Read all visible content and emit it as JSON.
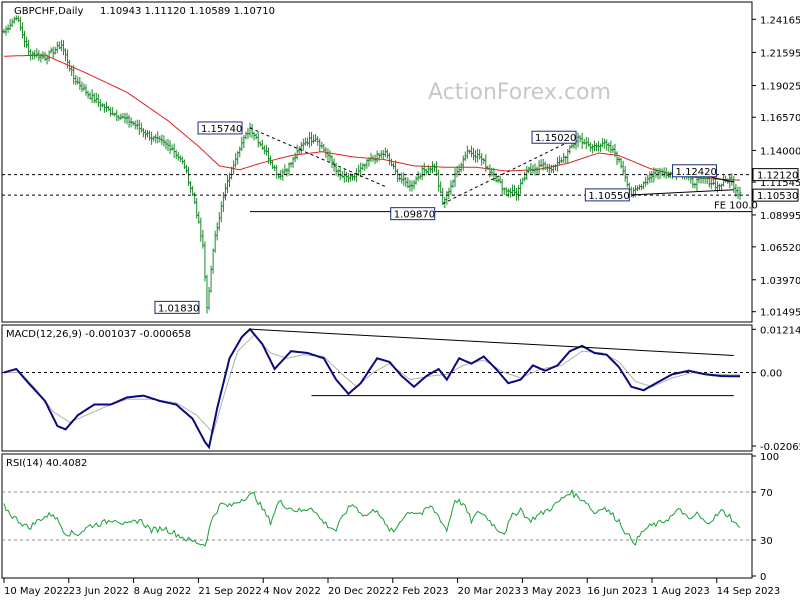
{
  "chart_data": [
    {
      "type": "candlestick",
      "symbol": "GBPCHF,Daily",
      "ohlc_text": "1.10943 1.11120 1.10589 1.10710",
      "watermark": "ActionForex.com",
      "ylim": [
        1.0085,
        1.2535
      ],
      "y_ticks": [
        "1.24165",
        "1.21595",
        "1.19025",
        "1.16570",
        "1.14000",
        "1.11545",
        "1.08995",
        "1.06520",
        "1.03970",
        "1.01495"
      ],
      "y_tick_values": [
        1.24165,
        1.21595,
        1.19025,
        1.1657,
        1.14,
        1.11545,
        1.08995,
        1.0652,
        1.0397,
        1.01495
      ],
      "current_price_labels": [
        {
          "text": "1.12120",
          "value": 1.1212
        },
        {
          "text": "1.10530",
          "value": 1.1053
        }
      ],
      "x_labels": [
        "10 May 2022",
        "23 Jun 2022",
        "8 Aug 2022",
        "21 Sep 2022",
        "4 Nov 2022",
        "20 Dec 2022",
        "2 Feb 2023",
        "20 Mar 2023",
        "3 May 2023",
        "16 Jun 2023",
        "1 Aug 2023",
        "14 Sep 2023"
      ],
      "price_keypoints": [
        [
          0,
          1.232
        ],
        [
          6,
          1.244
        ],
        [
          12,
          1.216
        ],
        [
          20,
          1.212
        ],
        [
          28,
          1.222
        ],
        [
          34,
          1.196
        ],
        [
          42,
          1.182
        ],
        [
          52,
          1.17
        ],
        [
          62,
          1.162
        ],
        [
          72,
          1.15
        ],
        [
          82,
          1.142
        ],
        [
          88,
          1.128
        ],
        [
          93,
          1.1
        ],
        [
          97,
          1.065
        ],
        [
          99,
          1.0183
        ],
        [
          103,
          1.075
        ],
        [
          108,
          1.11
        ],
        [
          114,
          1.14
        ],
        [
          120,
          1.1574
        ],
        [
          128,
          1.138
        ],
        [
          134,
          1.12
        ],
        [
          140,
          1.13
        ],
        [
          146,
          1.146
        ],
        [
          152,
          1.15
        ],
        [
          158,
          1.136
        ],
        [
          164,
          1.12
        ],
        [
          170,
          1.118
        ],
        [
          178,
          1.132
        ],
        [
          186,
          1.138
        ],
        [
          192,
          1.12
        ],
        [
          198,
          1.112
        ],
        [
          204,
          1.124
        ],
        [
          210,
          1.128
        ],
        [
          214,
          1.0987
        ],
        [
          220,
          1.12
        ],
        [
          226,
          1.14
        ],
        [
          232,
          1.135
        ],
        [
          238,
          1.122
        ],
        [
          244,
          1.11
        ],
        [
          250,
          1.107
        ],
        [
          256,
          1.125
        ],
        [
          262,
          1.128
        ],
        [
          268,
          1.126
        ],
        [
          274,
          1.136
        ],
        [
          280,
          1.1502
        ],
        [
          286,
          1.142
        ],
        [
          292,
          1.146
        ],
        [
          298,
          1.138
        ],
        [
          302,
          1.125
        ],
        [
          306,
          1.1055
        ],
        [
          312,
          1.115
        ],
        [
          318,
          1.124
        ],
        [
          324,
          1.122
        ],
        [
          330,
          1.1242
        ],
        [
          336,
          1.115
        ],
        [
          342,
          1.118
        ],
        [
          348,
          1.112
        ],
        [
          354,
          1.118
        ],
        [
          358,
          1.1071
        ]
      ],
      "moving_average_keypoints": [
        [
          0,
          1.213
        ],
        [
          20,
          1.214
        ],
        [
          40,
          1.2
        ],
        [
          60,
          1.185
        ],
        [
          80,
          1.163
        ],
        [
          95,
          1.143
        ],
        [
          105,
          1.128
        ],
        [
          115,
          1.125
        ],
        [
          125,
          1.13
        ],
        [
          140,
          1.136
        ],
        [
          155,
          1.139
        ],
        [
          170,
          1.135
        ],
        [
          185,
          1.133
        ],
        [
          200,
          1.128
        ],
        [
          215,
          1.127
        ],
        [
          230,
          1.127
        ],
        [
          245,
          1.124
        ],
        [
          260,
          1.125
        ],
        [
          275,
          1.13
        ],
        [
          290,
          1.138
        ],
        [
          300,
          1.136
        ],
        [
          315,
          1.126
        ],
        [
          330,
          1.12
        ],
        [
          345,
          1.118
        ],
        [
          358,
          1.117
        ]
      ],
      "annotations": [
        {
          "text": "1.15740",
          "value": 1.1574
        },
        {
          "text": "1.01830",
          "value": 1.0183
        },
        {
          "text": "1.09870",
          "value": 1.0987
        },
        {
          "text": "1.15020",
          "value": 1.1502
        },
        {
          "text": "1.10550",
          "value": 1.1055
        },
        {
          "text": "1.12420",
          "value": 1.1242
        }
      ],
      "horizontal_levels": [
        {
          "value": 1.1212,
          "style": "dashed"
        },
        {
          "value": 1.1053,
          "style": "dashed"
        },
        {
          "value": 1.0925,
          "style": "solid",
          "label": "FE 100.0"
        }
      ]
    },
    {
      "type": "line",
      "title": "MACD(12,26,9) -0.001037 -0.000658",
      "ylim": [
        -0.0215,
        0.0128
      ],
      "y_ticks": [
        "0.012145",
        "0.00",
        "-0.020656"
      ],
      "y_tick_values": [
        0.012145,
        0.0,
        -0.020656
      ],
      "macd_keypoints": [
        [
          0,
          0.0
        ],
        [
          6,
          0.001
        ],
        [
          12,
          -0.003
        ],
        [
          20,
          -0.008
        ],
        [
          26,
          -0.015
        ],
        [
          30,
          -0.016
        ],
        [
          36,
          -0.012
        ],
        [
          44,
          -0.009
        ],
        [
          52,
          -0.009
        ],
        [
          60,
          -0.007
        ],
        [
          68,
          -0.0065
        ],
        [
          76,
          -0.008
        ],
        [
          84,
          -0.009
        ],
        [
          92,
          -0.013
        ],
        [
          98,
          -0.0195
        ],
        [
          100,
          -0.021
        ],
        [
          104,
          -0.01
        ],
        [
          110,
          0.004
        ],
        [
          116,
          0.01
        ],
        [
          120,
          0.0122
        ],
        [
          126,
          0.008
        ],
        [
          132,
          0.001
        ],
        [
          140,
          0.006
        ],
        [
          148,
          0.0055
        ],
        [
          156,
          0.004
        ],
        [
          162,
          -0.002
        ],
        [
          168,
          -0.006
        ],
        [
          174,
          -0.003
        ],
        [
          182,
          0.004
        ],
        [
          188,
          0.003
        ],
        [
          194,
          -0.001
        ],
        [
          200,
          -0.004
        ],
        [
          206,
          -0.001
        ],
        [
          212,
          0.001
        ],
        [
          216,
          -0.002
        ],
        [
          222,
          0.004
        ],
        [
          228,
          0.0025
        ],
        [
          234,
          0.0045
        ],
        [
          240,
          0.001
        ],
        [
          246,
          -0.003
        ],
        [
          252,
          -0.002
        ],
        [
          258,
          0.002
        ],
        [
          264,
          0.0005
        ],
        [
          270,
          0.002
        ],
        [
          276,
          0.006
        ],
        [
          282,
          0.0075
        ],
        [
          288,
          0.0055
        ],
        [
          294,
          0.005
        ],
        [
          300,
          0.0015
        ],
        [
          306,
          -0.004
        ],
        [
          312,
          -0.005
        ],
        [
          318,
          -0.003
        ],
        [
          326,
          -0.0005
        ],
        [
          334,
          0.0005
        ],
        [
          342,
          -0.0005
        ],
        [
          350,
          -0.001
        ],
        [
          358,
          -0.001037
        ]
      ],
      "signal_keypoints": [
        [
          0,
          0.0
        ],
        [
          8,
          0.0
        ],
        [
          16,
          -0.005
        ],
        [
          24,
          -0.011
        ],
        [
          32,
          -0.014
        ],
        [
          40,
          -0.012
        ],
        [
          50,
          -0.0095
        ],
        [
          60,
          -0.0075
        ],
        [
          72,
          -0.0075
        ],
        [
          84,
          -0.0085
        ],
        [
          94,
          -0.012
        ],
        [
          102,
          -0.017
        ],
        [
          108,
          -0.005
        ],
        [
          114,
          0.006
        ],
        [
          122,
          0.0105
        ],
        [
          130,
          0.0055
        ],
        [
          138,
          0.004
        ],
        [
          146,
          0.005
        ],
        [
          156,
          0.0045
        ],
        [
          164,
          0.0
        ],
        [
          172,
          -0.004
        ],
        [
          180,
          0.0
        ],
        [
          188,
          0.0025
        ],
        [
          198,
          -0.002
        ],
        [
          208,
          -0.001
        ],
        [
          216,
          -0.0005
        ],
        [
          224,
          0.002
        ],
        [
          234,
          0.0035
        ],
        [
          244,
          0.0
        ],
        [
          252,
          -0.0015
        ],
        [
          262,
          0.001
        ],
        [
          272,
          0.002
        ],
        [
          282,
          0.006
        ],
        [
          292,
          0.0055
        ],
        [
          300,
          0.003
        ],
        [
          308,
          -0.0025
        ],
        [
          316,
          -0.004
        ],
        [
          326,
          -0.0015
        ],
        [
          336,
          0.0
        ],
        [
          346,
          -0.0005
        ],
        [
          358,
          -0.000658
        ]
      ],
      "trendlines": [
        {
          "from": [
            120,
            0.0122
          ],
          "to": [
            356,
            0.0048
          ]
        },
        {
          "from": [
            150,
            -0.0065
          ],
          "to": [
            356,
            -0.0065
          ]
        }
      ]
    },
    {
      "type": "line",
      "title": "RSI(14) 40.4082",
      "ylim": [
        0,
        100
      ],
      "y_ticks": [
        "100",
        "70",
        "30",
        "0"
      ],
      "y_tick_values": [
        100,
        70,
        30,
        0
      ],
      "levels": [
        70,
        30
      ],
      "rsi_keypoints": [
        [
          0,
          58
        ],
        [
          4,
          50
        ],
        [
          8,
          45
        ],
        [
          12,
          40
        ],
        [
          18,
          48
        ],
        [
          24,
          52
        ],
        [
          30,
          36
        ],
        [
          36,
          35
        ],
        [
          42,
          42
        ],
        [
          48,
          44
        ],
        [
          54,
          48
        ],
        [
          60,
          42
        ],
        [
          66,
          47
        ],
        [
          72,
          38
        ],
        [
          78,
          40
        ],
        [
          84,
          35
        ],
        [
          90,
          30
        ],
        [
          94,
          28
        ],
        [
          98,
          26
        ],
        [
          102,
          50
        ],
        [
          106,
          60
        ],
        [
          110,
          58
        ],
        [
          114,
          62
        ],
        [
          118,
          66
        ],
        [
          122,
          68
        ],
        [
          126,
          56
        ],
        [
          130,
          45
        ],
        [
          134,
          62
        ],
        [
          138,
          58
        ],
        [
          142,
          55
        ],
        [
          146,
          54
        ],
        [
          150,
          58
        ],
        [
          154,
          48
        ],
        [
          158,
          42
        ],
        [
          162,
          38
        ],
        [
          166,
          52
        ],
        [
          170,
          60
        ],
        [
          176,
          50
        ],
        [
          182,
          56
        ],
        [
          186,
          42
        ],
        [
          190,
          36
        ],
        [
          194,
          48
        ],
        [
          198,
          54
        ],
        [
          204,
          52
        ],
        [
          208,
          58
        ],
        [
          212,
          50
        ],
        [
          216,
          38
        ],
        [
          220,
          64
        ],
        [
          224,
          60
        ],
        [
          228,
          46
        ],
        [
          232,
          54
        ],
        [
          236,
          48
        ],
        [
          240,
          40
        ],
        [
          244,
          36
        ],
        [
          248,
          50
        ],
        [
          252,
          56
        ],
        [
          256,
          46
        ],
        [
          260,
          50
        ],
        [
          264,
          54
        ],
        [
          268,
          58
        ],
        [
          272,
          64
        ],
        [
          276,
          70
        ],
        [
          280,
          66
        ],
        [
          284,
          62
        ],
        [
          288,
          52
        ],
        [
          292,
          58
        ],
        [
          296,
          52
        ],
        [
          300,
          46
        ],
        [
          304,
          34
        ],
        [
          308,
          28
        ],
        [
          312,
          38
        ],
        [
          316,
          42
        ],
        [
          320,
          44
        ],
        [
          326,
          50
        ],
        [
          330,
          56
        ],
        [
          334,
          46
        ],
        [
          338,
          52
        ],
        [
          342,
          44
        ],
        [
          346,
          48
        ],
        [
          350,
          54
        ],
        [
          354,
          50
        ],
        [
          358,
          40.4
        ]
      ]
    }
  ]
}
